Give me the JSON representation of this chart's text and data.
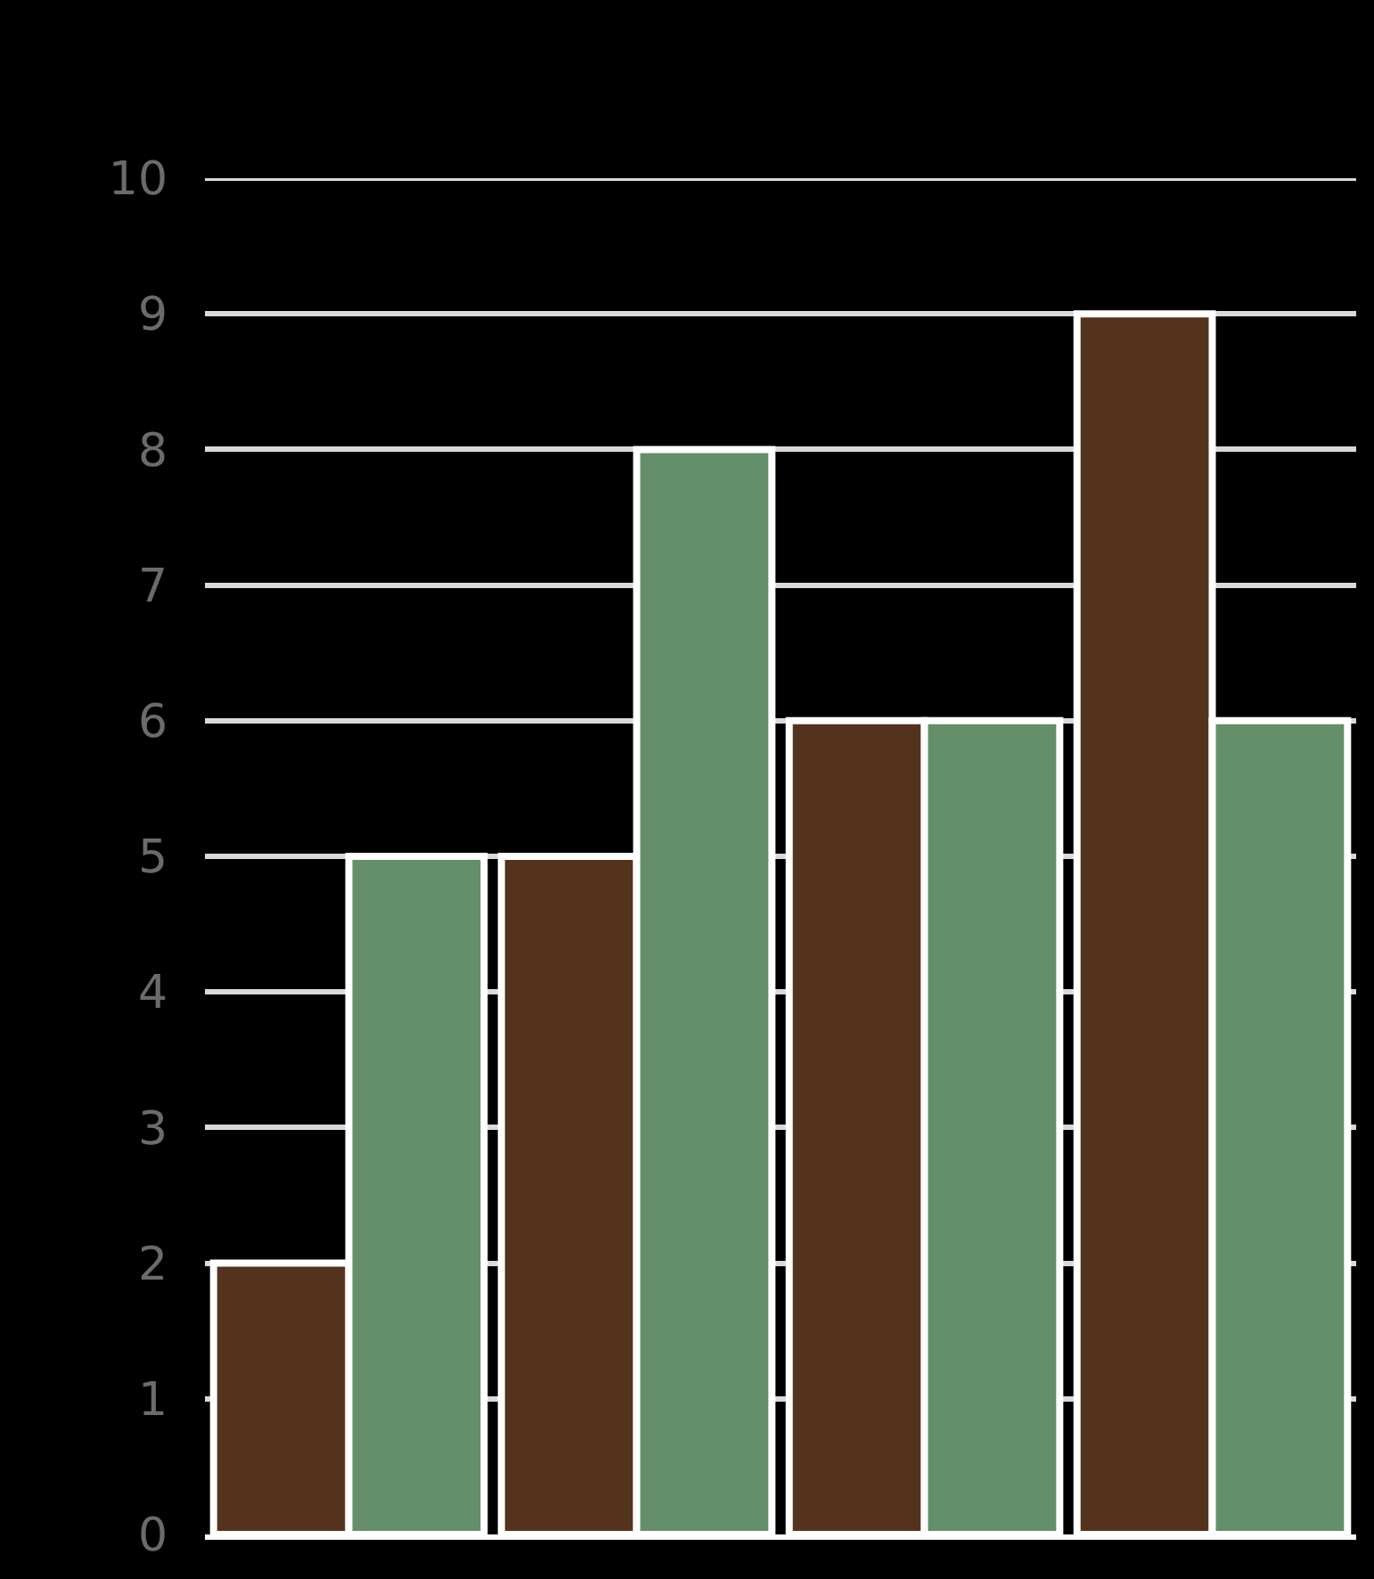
{
  "chart_data": {
    "type": "bar",
    "categories": [
      null,
      null,
      null,
      null
    ],
    "series": [
      {
        "color": "#54331e",
        "values": [
          2,
          5,
          6,
          9
        ]
      },
      {
        "color": "#648f69",
        "values": [
          5,
          8,
          6,
          6
        ]
      }
    ],
    "ylim": [
      0,
      10
    ],
    "yticks": [
      0,
      1,
      2,
      3,
      4,
      5,
      6,
      7,
      8,
      9,
      10
    ],
    "grid": "y",
    "tick_labels": "y"
  }
}
